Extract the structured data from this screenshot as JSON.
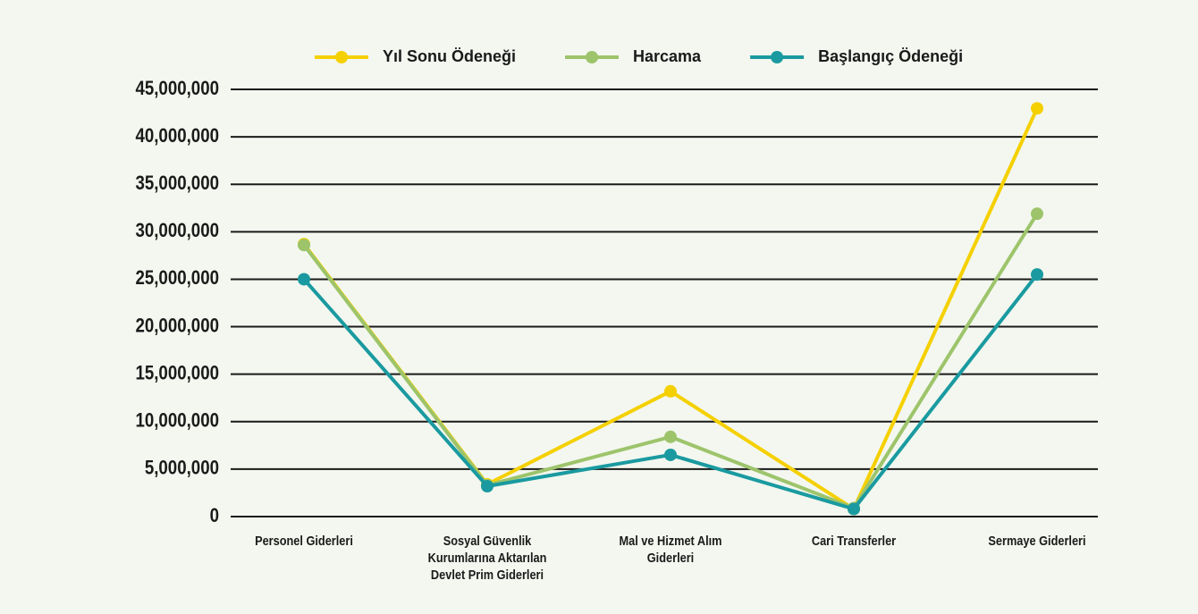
{
  "chart_data": {
    "type": "line",
    "categories": [
      "Personel Giderleri",
      "Sosyal Güvenlik Kurumlarına Aktarılan Devlet Prim Giderleri",
      "Mal ve Hizmet Alım Giderleri",
      "Cari Transferler",
      "Sermaye Giderleri"
    ],
    "series": [
      {
        "name": "Yıl Sonu Ödeneği",
        "color": "#f5d000",
        "values": [
          28700000,
          3400000,
          13200000,
          800000,
          43000000
        ]
      },
      {
        "name": "Harcama",
        "color": "#9dc46b",
        "values": [
          28600000,
          3300000,
          8400000,
          900000,
          31900000
        ]
      },
      {
        "name": "Başlangıç Ödeneği",
        "color": "#1a9aa0",
        "values": [
          25000000,
          3200000,
          6500000,
          800000,
          25500000
        ]
      }
    ],
    "ylim": [
      0,
      45000000
    ],
    "yticks": [
      0,
      {
        "value": 5000000,
        "label": "5,000,000"
      },
      {
        "value": 10000000,
        "label": "10,000,000"
      },
      {
        "value": 15000000,
        "label": "15,000,000"
      },
      {
        "value": 20000000,
        "label": "20,000,000"
      },
      {
        "value": 25000000,
        "label": "25,000,000"
      },
      {
        "value": 30000000,
        "label": "30,000,000"
      },
      {
        "value": 35000000,
        "label": "35,000,000"
      },
      {
        "value": 40000000,
        "label": "40,000,000"
      },
      {
        "value": 45000000,
        "label": "45,000,000"
      }
    ],
    "grid": true,
    "legend": "top"
  }
}
